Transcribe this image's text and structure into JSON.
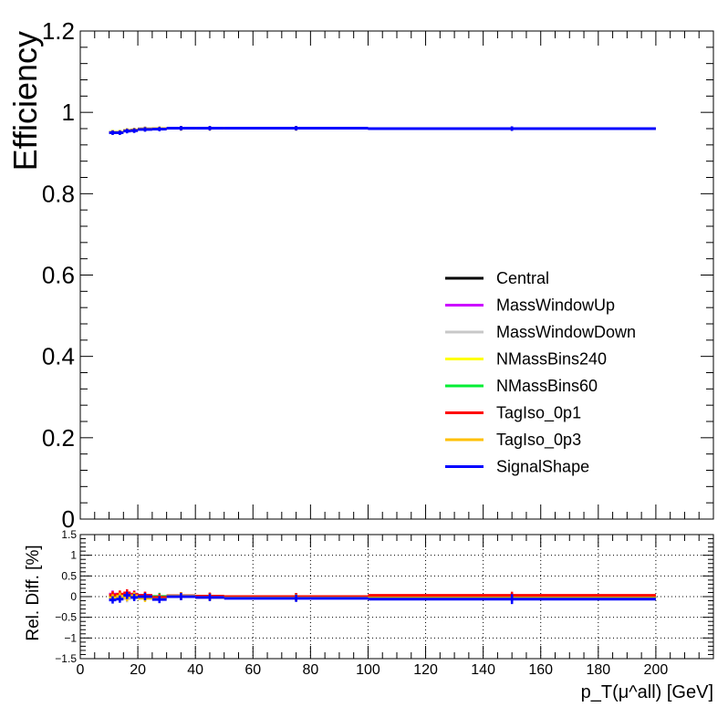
{
  "chart_data": [
    {
      "panel": "efficiency",
      "type": "line",
      "ylabel": "Efficiency",
      "xlim": [
        0,
        220
      ],
      "ylim": [
        0,
        1.2
      ],
      "yticks": [
        0,
        0.2,
        0.4,
        0.6,
        0.8,
        1,
        1.2
      ],
      "ytick_labels": [
        "0",
        "0.2",
        "0.4",
        "0.6",
        "0.8",
        "1",
        "1.2"
      ],
      "legend_position": "bottom-right",
      "bin_edges": [
        10,
        12.5,
        15,
        17.5,
        20,
        25,
        30,
        40,
        50,
        100,
        200
      ],
      "series": [
        {
          "name": "Central",
          "color": "#000000",
          "values": [
            0.951,
            0.951,
            0.955,
            0.956,
            0.959,
            0.96,
            0.961,
            0.961,
            0.961,
            0.96
          ]
        },
        {
          "name": "MassWindowUp",
          "color": "#cc00ff",
          "values": [
            0.951,
            0.951,
            0.955,
            0.956,
            0.959,
            0.96,
            0.961,
            0.961,
            0.961,
            0.96
          ]
        },
        {
          "name": "MassWindowDown",
          "color": "#c8c8c8",
          "values": [
            0.951,
            0.951,
            0.955,
            0.956,
            0.959,
            0.96,
            0.961,
            0.961,
            0.961,
            0.96
          ]
        },
        {
          "name": "NMassBins240",
          "color": "#ffff00",
          "values": [
            0.951,
            0.951,
            0.955,
            0.956,
            0.959,
            0.96,
            0.961,
            0.961,
            0.961,
            0.96
          ]
        },
        {
          "name": "NMassBins60",
          "color": "#00ee33",
          "values": [
            0.951,
            0.951,
            0.955,
            0.956,
            0.959,
            0.96,
            0.961,
            0.961,
            0.961,
            0.96
          ]
        },
        {
          "name": "TagIso_0p1",
          "color": "#ff0000",
          "values": [
            0.951,
            0.951,
            0.955,
            0.956,
            0.959,
            0.96,
            0.961,
            0.961,
            0.961,
            0.96
          ]
        },
        {
          "name": "TagIso_0p3",
          "color": "#ffc000",
          "values": [
            0.951,
            0.951,
            0.955,
            0.956,
            0.959,
            0.96,
            0.961,
            0.961,
            0.961,
            0.96
          ]
        },
        {
          "name": "SignalShape",
          "color": "#0000ff",
          "values": [
            0.95,
            0.95,
            0.954,
            0.955,
            0.958,
            0.959,
            0.961,
            0.961,
            0.961,
            0.96
          ]
        }
      ]
    },
    {
      "panel": "ratio",
      "type": "line",
      "ylabel": "Rel. Diff. [%]",
      "xlabel": "p_T(μ^all) [GeV]",
      "xlim": [
        0,
        220
      ],
      "ylim": [
        -1.5,
        1.5
      ],
      "grid": true,
      "xticks": [
        0,
        20,
        40,
        60,
        80,
        100,
        120,
        140,
        160,
        180,
        200
      ],
      "xtick_labels": [
        "0",
        "20",
        "40",
        "60",
        "80",
        "100",
        "120",
        "140",
        "160",
        "180",
        "200"
      ],
      "yticks": [
        -1.5,
        -1,
        -0.5,
        0,
        0.5,
        1,
        1.5
      ],
      "ytick_labels": [
        "−1.5",
        "−1",
        "−0.5",
        "0",
        "0.5",
        "1",
        "1.5"
      ],
      "bin_edges": [
        10,
        12.5,
        15,
        17.5,
        20,
        25,
        30,
        40,
        50,
        100,
        200
      ],
      "series": [
        {
          "name": "Central",
          "color": "#000000",
          "values": [
            0,
            0,
            0,
            0,
            0,
            0,
            0,
            0,
            0,
            0
          ]
        },
        {
          "name": "MassWindowUp",
          "color": "#cc00ff",
          "values": [
            0.06,
            0.04,
            0.08,
            0.06,
            0.03,
            -0.02,
            0.01,
            0.0,
            -0.01,
            0.0
          ]
        },
        {
          "name": "MassWindowDown",
          "color": "#c8c8c8",
          "values": [
            -0.04,
            -0.03,
            -0.05,
            -0.02,
            -0.01,
            0.01,
            0.0,
            -0.01,
            0.0,
            0.0
          ]
        },
        {
          "name": "NMassBins240",
          "color": "#ffff00",
          "values": [
            0.03,
            0.05,
            0.02,
            0.04,
            0.02,
            -0.03,
            0.0,
            -0.01,
            -0.01,
            -0.01
          ]
        },
        {
          "name": "NMassBins60",
          "color": "#00ee33",
          "values": [
            -0.02,
            0.02,
            0.01,
            0.03,
            0.01,
            0.0,
            0.02,
            0.0,
            -0.01,
            -0.01
          ]
        },
        {
          "name": "TagIso_0p1",
          "color": "#ff0000",
          "values": [
            0.04,
            0.06,
            0.09,
            0.05,
            0.03,
            -0.02,
            0.02,
            0.01,
            0.0,
            0.03
          ]
        },
        {
          "name": "TagIso_0p3",
          "color": "#ffc000",
          "values": [
            -0.03,
            0.01,
            -0.02,
            0.02,
            -0.04,
            -0.06,
            0.01,
            -0.02,
            -0.03,
            -0.04
          ]
        },
        {
          "name": "SignalShape",
          "color": "#0000ff",
          "values": [
            -0.08,
            -0.06,
            0.03,
            -0.02,
            0.0,
            -0.07,
            0.0,
            -0.02,
            -0.04,
            -0.06
          ]
        }
      ],
      "error_markers": [
        {
          "x": 150,
          "value": -0.06,
          "err": 0.12
        }
      ]
    }
  ]
}
